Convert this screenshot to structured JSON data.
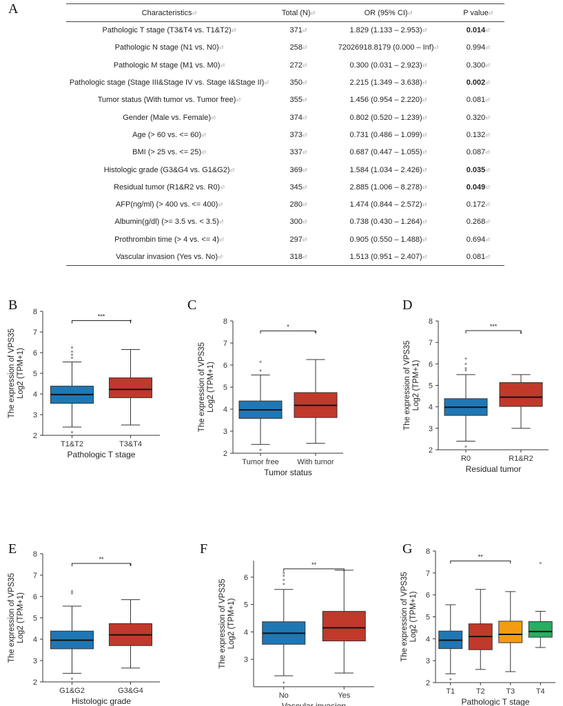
{
  "panels": {
    "A": "A",
    "B": "B",
    "C": "C",
    "D": "D",
    "E": "E",
    "F": "F",
    "G": "G"
  },
  "table": {
    "headers": [
      "Characteristics",
      "Total (N)",
      "OR (95% CI)",
      "P value"
    ],
    "rows": [
      {
        "char": "Pathologic T stage (T3&T4 vs. T1&T2)",
        "n": "371",
        "or": "1.829 (1.133 – 2.953)",
        "p": "0.014",
        "sig": true
      },
      {
        "char": "Pathologic N stage (N1 vs. N0)",
        "n": "258",
        "or": "72026918.8179 (0.000 – Inf)",
        "p": "0.994",
        "sig": false
      },
      {
        "char": "Pathologic M stage (M1 vs. M0)",
        "n": "272",
        "or": "0.300 (0.031 – 2.923)",
        "p": "0.300",
        "sig": false
      },
      {
        "char": "Pathologic stage (Stage III&Stage IV vs. Stage I&Stage II)",
        "n": "350",
        "or": "2.215 (1.349 – 3.638)",
        "p": "0.002",
        "sig": true
      },
      {
        "char": "Tumor status (With tumor vs. Tumor free)",
        "n": "355",
        "or": "1.456 (0.954 – 2.220)",
        "p": "0.081",
        "sig": false
      },
      {
        "char": "Gender (Male vs. Female)",
        "n": "374",
        "or": "0.802 (0.520 – 1.239)",
        "p": "0.320",
        "sig": false
      },
      {
        "char": "Age (> 60 vs. <= 60)",
        "n": "373",
        "or": "0.731 (0.486 – 1.099)",
        "p": "0.132",
        "sig": false
      },
      {
        "char": "BMI (> 25 vs. <= 25)",
        "n": "337",
        "or": "0.687 (0.447 – 1.055)",
        "p": "0.087",
        "sig": false
      },
      {
        "char": "Histologic grade (G3&G4 vs. G1&G2)",
        "n": "369",
        "or": "1.584 (1.034 – 2.426)",
        "p": "0.035",
        "sig": true
      },
      {
        "char": "Residual tumor (R1&R2 vs. R0)",
        "n": "345",
        "or": "2.885 (1.006 – 8.278)",
        "p": "0.049",
        "sig": true
      },
      {
        "char": "AFP(ng/ml) (> 400 vs. <= 400)",
        "n": "280",
        "or": "1.474 (0.844 – 2.572)",
        "p": "0.172",
        "sig": false
      },
      {
        "char": "Albumin(g/dl) (>= 3.5 vs. < 3.5)",
        "n": "300",
        "or": "0.738 (0.430 – 1.264)",
        "p": "0.268",
        "sig": false
      },
      {
        "char": "Prothrombin time (> 4 vs. <= 4)",
        "n": "297",
        "or": "0.905 (0.550 – 1.488)",
        "p": "0.694",
        "sig": false
      },
      {
        "char": "Vascular invasion (Yes vs. No)",
        "n": "318",
        "or": "1.513 (0.951 – 2.407)",
        "p": "0.081",
        "sig": false
      }
    ]
  },
  "colors": {
    "blue": "#1f77b4",
    "red": "#c0392b",
    "orange": "#f39c12",
    "green": "#27ae60"
  },
  "chart_data": [
    {
      "id": "B",
      "type": "box",
      "ylabel_line1": "The expression of VPS35",
      "ylabel_line2": "Log2 (TPM+1)",
      "xlabel": "Pathologic T stage",
      "ylim": [
        2,
        8
      ],
      "yticks": [
        2,
        3,
        4,
        5,
        6,
        7,
        8
      ],
      "categories": [
        "T1&T2",
        "T3&T4"
      ],
      "boxes": [
        {
          "min": 2.4,
          "q1": 3.55,
          "median": 3.97,
          "q3": 4.38,
          "max": 5.55,
          "outliers": [
            2.15,
            5.75,
            5.9,
            6.05,
            6.25
          ],
          "color": "blue"
        },
        {
          "min": 2.5,
          "q1": 3.82,
          "median": 4.22,
          "q3": 4.78,
          "max": 6.15,
          "outliers": [
            7.55
          ],
          "color": "red"
        }
      ],
      "signif": [
        {
          "from": 0,
          "to": 1,
          "label": "***",
          "y": 7.55
        }
      ]
    },
    {
      "id": "C",
      "type": "box",
      "ylabel_line1": "The expression of VPS35",
      "ylabel_line2": "Log2 (TPM+1)",
      "xlabel": "Tumor status",
      "ylim": [
        2,
        8
      ],
      "yticks": [
        2,
        3,
        4,
        5,
        6,
        7,
        8
      ],
      "categories": [
        "Tumor free",
        "With tumor"
      ],
      "boxes": [
        {
          "min": 2.4,
          "q1": 3.58,
          "median": 3.97,
          "q3": 4.37,
          "max": 5.55,
          "outliers": [
            2.15,
            5.75,
            6.15
          ],
          "color": "blue"
        },
        {
          "min": 2.45,
          "q1": 3.62,
          "median": 4.17,
          "q3": 4.75,
          "max": 6.25,
          "outliers": [
            7.5
          ],
          "color": "red"
        }
      ],
      "signif": [
        {
          "from": 0,
          "to": 1,
          "label": "*",
          "y": 7.55
        }
      ]
    },
    {
      "id": "D",
      "type": "box",
      "ylabel_line1": "The expression of VPS35",
      "ylabel_line2": "Log2 (TPM+1)",
      "xlabel": "Residual tumor",
      "ylim": [
        2,
        8
      ],
      "yticks": [
        2,
        3,
        4,
        5,
        6,
        7,
        8
      ],
      "categories": [
        "R0",
        "R1&R2"
      ],
      "boxes": [
        {
          "min": 2.4,
          "q1": 3.6,
          "median": 3.98,
          "q3": 4.38,
          "max": 5.5,
          "outliers": [
            2.15,
            5.7,
            5.8,
            6.0,
            6.25
          ],
          "color": "blue"
        },
        {
          "min": 3.0,
          "q1": 4.02,
          "median": 4.45,
          "q3": 5.13,
          "max": 5.5,
          "outliers": [
            7.45
          ],
          "color": "red"
        }
      ],
      "signif": [
        {
          "from": 0,
          "to": 1,
          "label": "***",
          "y": 7.55
        }
      ]
    },
    {
      "id": "E",
      "type": "box",
      "ylabel_line1": "The expression of VPS35",
      "ylabel_line2": "Log2 (TPM+1)",
      "xlabel": "Histologic grade",
      "ylim": [
        2,
        8
      ],
      "yticks": [
        2,
        3,
        4,
        5,
        6,
        7,
        8
      ],
      "categories": [
        "G1&G2",
        "G3&G4"
      ],
      "boxes": [
        {
          "min": 2.4,
          "q1": 3.55,
          "median": 3.95,
          "q3": 4.38,
          "max": 5.55,
          "outliers": [
            2.15,
            6.15,
            6.25
          ],
          "color": "blue"
        },
        {
          "min": 2.65,
          "q1": 3.7,
          "median": 4.2,
          "q3": 4.73,
          "max": 5.85,
          "outliers": [
            7.5
          ],
          "color": "red"
        }
      ],
      "signif": [
        {
          "from": 0,
          "to": 1,
          "label": "**",
          "y": 7.55
        }
      ]
    },
    {
      "id": "F",
      "type": "box",
      "ylabel_line1": "The expression of VPS35",
      "ylabel_line2": "Log2 (TPM+1)",
      "xlabel": "Vascular invasion",
      "ylim": [
        2,
        6.6
      ],
      "yticks": [
        3,
        4,
        5,
        6
      ],
      "categories": [
        "No",
        "Yes"
      ],
      "boxes": [
        {
          "min": 2.4,
          "q1": 3.55,
          "median": 3.95,
          "q3": 4.37,
          "max": 5.55,
          "outliers": [
            2.15,
            5.75,
            5.9,
            6.05,
            6.15
          ],
          "color": "blue"
        },
        {
          "min": 2.5,
          "q1": 3.67,
          "median": 4.15,
          "q3": 4.75,
          "max": 6.25,
          "outliers": [],
          "color": "red"
        }
      ],
      "signif": [
        {
          "from": 0,
          "to": 1,
          "label": "**",
          "y": 6.3
        }
      ]
    },
    {
      "id": "G",
      "type": "box",
      "ylabel_line1": "The expression of VPS35",
      "ylabel_line2": "Log2 (TPM+1)",
      "xlabel": "Pathologic T stage",
      "ylim": [
        2,
        8
      ],
      "yticks": [
        2,
        3,
        4,
        5,
        6,
        7,
        8
      ],
      "categories": [
        "T1",
        "T2",
        "T3",
        "T4"
      ],
      "boxes": [
        {
          "min": 2.4,
          "q1": 3.55,
          "median": 3.93,
          "q3": 4.35,
          "max": 5.55,
          "outliers": [
            2.15
          ],
          "color": "blue"
        },
        {
          "min": 2.6,
          "q1": 3.5,
          "median": 4.1,
          "q3": 4.68,
          "max": 6.25,
          "outliers": [],
          "color": "red"
        },
        {
          "min": 2.5,
          "q1": 3.82,
          "median": 4.2,
          "q3": 4.8,
          "max": 6.15,
          "outliers": [],
          "color": "orange"
        },
        {
          "min": 3.6,
          "q1": 4.07,
          "median": 4.33,
          "q3": 4.78,
          "max": 5.25,
          "outliers": [
            7.45
          ],
          "color": "green"
        }
      ],
      "signif": [
        {
          "from": 0,
          "to": 2,
          "label": "**",
          "y": 7.55
        }
      ]
    }
  ]
}
